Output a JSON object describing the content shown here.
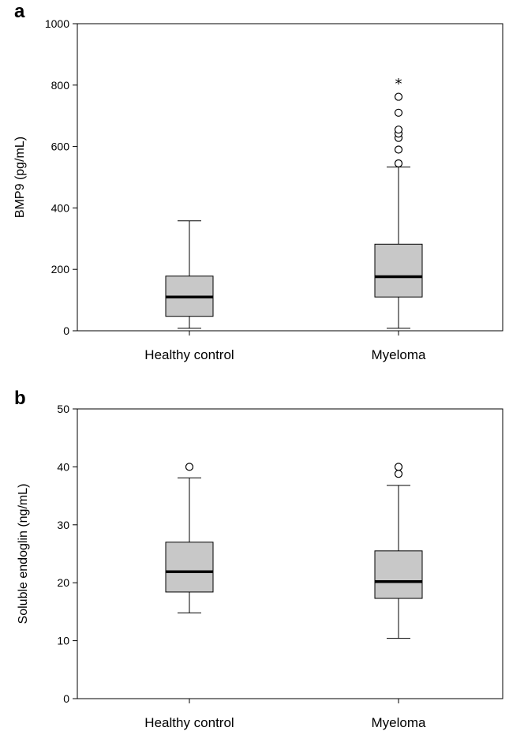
{
  "chart_data": [
    {
      "type": "boxplot",
      "panel_label": "a",
      "ylabel": "BMP9 (pg/mL)",
      "ylim": [
        0,
        1000
      ],
      "yticks": [
        0,
        200,
        400,
        600,
        800,
        1000
      ],
      "categories": [
        "Healthy control",
        "Myeloma"
      ],
      "boxes": [
        {
          "category": "Healthy control",
          "whisker_low": 8,
          "q1": 47,
          "median": 110,
          "q3": 178,
          "whisker_high": 358,
          "outliers": [],
          "extremes": []
        },
        {
          "category": "Myeloma",
          "whisker_low": 8,
          "q1": 110,
          "median": 176,
          "q3": 282,
          "whisker_high": 533,
          "outliers": [
            545,
            590,
            628,
            642,
            655,
            710,
            762
          ],
          "extremes": [
            810
          ]
        }
      ]
    },
    {
      "type": "boxplot",
      "panel_label": "b",
      "ylabel": "Soluble endoglin (ng/mL)",
      "ylim": [
        0,
        50
      ],
      "yticks": [
        0,
        10,
        20,
        30,
        40,
        50
      ],
      "categories": [
        "Healthy control",
        "Myeloma"
      ],
      "boxes": [
        {
          "category": "Healthy control",
          "whisker_low": 14.8,
          "q1": 18.4,
          "median": 21.9,
          "q3": 27.0,
          "whisker_high": 38.1,
          "outliers": [
            40.0
          ],
          "extremes": []
        },
        {
          "category": "Myeloma",
          "whisker_low": 10.4,
          "q1": 17.3,
          "median": 20.2,
          "q3": 25.5,
          "whisker_high": 36.8,
          "outliers": [
            38.8,
            40.0
          ],
          "extremes": []
        }
      ]
    }
  ]
}
